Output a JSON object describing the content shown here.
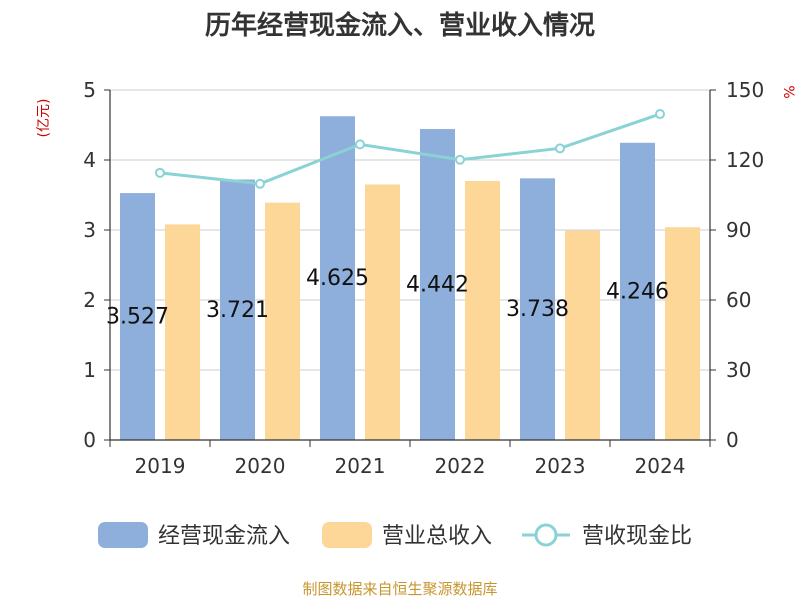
{
  "chart_data": {
    "type": "bar",
    "title": "历年经营现金流入、营业收入情况",
    "categories": [
      "2019",
      "2020",
      "2021",
      "2022",
      "2023",
      "2024"
    ],
    "y_left_label": "(亿元)",
    "y_right_label": "%",
    "y_left_ticks": [
      "0",
      "1",
      "2",
      "3",
      "4",
      "5"
    ],
    "y_right_ticks": [
      "0",
      "30",
      "60",
      "90",
      "120",
      "150"
    ],
    "ylim_left": [
      0,
      5
    ],
    "ylim_right": [
      0,
      150
    ],
    "grid": true,
    "legend_position": "bottom",
    "series": [
      {
        "name": "经营现金流入",
        "type": "bar",
        "axis": "left",
        "color": "#8eaedb",
        "values": [
          3.527,
          3.721,
          4.625,
          4.442,
          3.738,
          4.246
        ],
        "labels": [
          "3.527",
          "3.721",
          "4.625",
          "4.442",
          "3.738",
          "4.246"
        ]
      },
      {
        "name": "营业总收入",
        "type": "bar",
        "axis": "left",
        "color": "#fdd797",
        "values": [
          3.08,
          3.39,
          3.65,
          3.7,
          2.99,
          3.04
        ]
      },
      {
        "name": "营收现金比",
        "type": "line",
        "axis": "right",
        "color": "#89d3d5",
        "values": [
          114.5,
          109.8,
          126.7,
          120.1,
          125.0,
          139.7
        ]
      }
    ],
    "source": "制图数据来自恒生聚源数据库"
  }
}
